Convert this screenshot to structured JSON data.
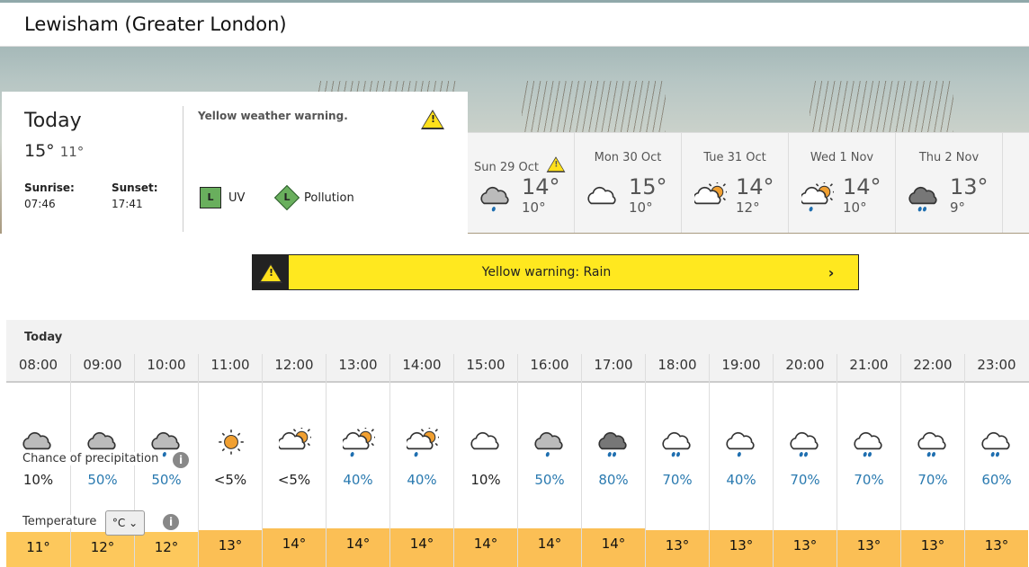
{
  "location": "Lewisham (Greater London)",
  "today": {
    "title": "Today",
    "high": "15°",
    "low": "11°",
    "sunrise_label": "Sunrise:",
    "sunrise": "07:46",
    "sunset_label": "Sunset:",
    "sunset": "17:41",
    "warning_text": "Yellow weather warning.",
    "uv_label": "UV",
    "uv_level": "L",
    "pollution_label": "Pollution",
    "pollution_level": "L"
  },
  "days": [
    {
      "date": "Sun 29 Oct",
      "high": "14°",
      "low": "10°",
      "icon": "light-rain",
      "warning": true
    },
    {
      "date": "Mon 30 Oct",
      "high": "15°",
      "low": "10°",
      "icon": "cloud"
    },
    {
      "date": "Tue 31 Oct",
      "high": "14°",
      "low": "12°",
      "icon": "partly-cloudy"
    },
    {
      "date": "Wed 1 Nov",
      "high": "14°",
      "low": "10°",
      "icon": "partly-cloudy-shower"
    },
    {
      "date": "Thu 2 Nov",
      "high": "13°",
      "low": "9°",
      "icon": "heavy-rain"
    }
  ],
  "banner": {
    "text": "Yellow warning: Rain",
    "colors": {
      "yellow": "#ffe81f",
      "dark": "#222222"
    }
  },
  "hourly": {
    "title": "Today",
    "precip_label": "Chance of precipitation",
    "temp_label": "Temperature",
    "unit": "°C",
    "hours": [
      {
        "time": "08:00",
        "icon": "cloud-grey",
        "precip": "10%",
        "temp": "11°",
        "wet": false
      },
      {
        "time": "09:00",
        "icon": "light-rain",
        "precip": "50%",
        "temp": "12°",
        "wet": true
      },
      {
        "time": "10:00",
        "icon": "light-rain",
        "precip": "50%",
        "temp": "12°",
        "wet": true
      },
      {
        "time": "11:00",
        "icon": "sun",
        "precip": "<5%",
        "temp": "13°",
        "wet": false
      },
      {
        "time": "12:00",
        "icon": "partly-cloudy",
        "precip": "<5%",
        "temp": "14°",
        "wet": false
      },
      {
        "time": "13:00",
        "icon": "partly-cloudy-shower",
        "precip": "40%",
        "temp": "14°",
        "wet": true
      },
      {
        "time": "14:00",
        "icon": "partly-cloudy-shower",
        "precip": "40%",
        "temp": "14°",
        "wet": true
      },
      {
        "time": "15:00",
        "icon": "cloud",
        "precip": "10%",
        "temp": "14°",
        "wet": false
      },
      {
        "time": "16:00",
        "icon": "light-rain",
        "precip": "50%",
        "temp": "14°",
        "wet": true
      },
      {
        "time": "17:00",
        "icon": "heavy-rain",
        "precip": "80%",
        "temp": "14°",
        "wet": true
      },
      {
        "time": "18:00",
        "icon": "cloud-heavy-shower",
        "precip": "70%",
        "temp": "13°",
        "wet": true
      },
      {
        "time": "19:00",
        "icon": "cloud-shower",
        "precip": "40%",
        "temp": "13°",
        "wet": true
      },
      {
        "time": "20:00",
        "icon": "cloud-heavy-shower",
        "precip": "70%",
        "temp": "13°",
        "wet": true
      },
      {
        "time": "21:00",
        "icon": "cloud-heavy-shower",
        "precip": "70%",
        "temp": "13°",
        "wet": true
      },
      {
        "time": "22:00",
        "icon": "cloud-heavy-shower",
        "precip": "70%",
        "temp": "13°",
        "wet": true
      },
      {
        "time": "23:00",
        "icon": "cloud-heavy-shower",
        "precip": "60%",
        "temp": "13°",
        "wet": true
      }
    ]
  },
  "colors": {
    "precip_wet": "#2a7ab0",
    "temp_11_12": "#fdc85c",
    "temp_13_14": "#fbbf55"
  }
}
